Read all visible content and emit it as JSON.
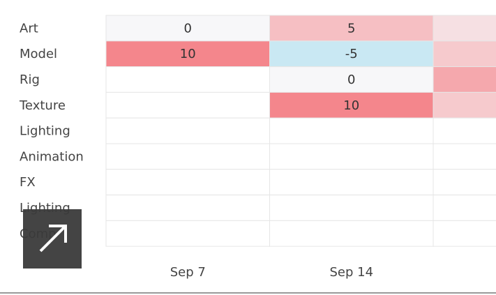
{
  "chart_data": {
    "type": "heatmap",
    "categories": [
      "Art",
      "Model",
      "Rig",
      "Texture",
      "Lighting",
      "Animation",
      "FX",
      "Lighting",
      "Comp"
    ],
    "x": [
      "Sep 7",
      "Sep 14",
      null
    ],
    "values": [
      [
        0,
        5,
        2
      ],
      [
        10,
        -5,
        4
      ],
      [
        null,
        0,
        7
      ],
      [
        null,
        10,
        4
      ],
      [
        null,
        null,
        null
      ],
      [
        null,
        null,
        null
      ],
      [
        null,
        null,
        null
      ],
      [
        null,
        null,
        null
      ],
      [
        null,
        null,
        null
      ]
    ],
    "color_scale": {
      "domain": [
        -5,
        0,
        10
      ],
      "colors": [
        "#c9e8f3",
        "#f7f7f9",
        "#f4868c"
      ]
    }
  }
}
